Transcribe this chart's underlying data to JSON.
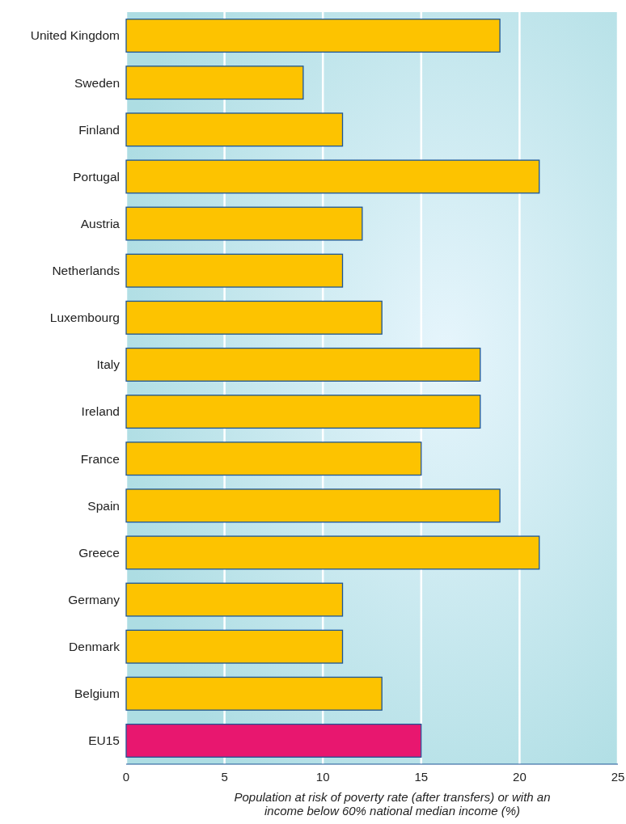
{
  "chart_data": {
    "type": "bar",
    "orientation": "horizontal",
    "categories": [
      "United Kingdom",
      "Sweden",
      "Finland",
      "Portugal",
      "Austria",
      "Netherlands",
      "Luxembourg",
      "Italy",
      "Ireland",
      "France",
      "Spain",
      "Greece",
      "Germany",
      "Denmark",
      "Belgium",
      "EU15"
    ],
    "values": [
      19,
      9,
      11,
      21,
      12,
      11,
      13,
      18,
      18,
      15,
      19,
      21,
      11,
      11,
      13,
      15
    ],
    "colors": [
      "#fdc300",
      "#fdc300",
      "#fdc300",
      "#fdc300",
      "#fdc300",
      "#fdc300",
      "#fdc300",
      "#fdc300",
      "#fdc300",
      "#fdc300",
      "#fdc300",
      "#fdc300",
      "#fdc300",
      "#fdc300",
      "#fdc300",
      "#e8176f"
    ],
    "xlim": [
      0,
      25
    ],
    "xticks": [
      0,
      5,
      10,
      15,
      20,
      25
    ],
    "grid": "x",
    "xlabel": "Population at risk of poverty rate (after transfers) or with an income below 60% national median income (%)"
  }
}
